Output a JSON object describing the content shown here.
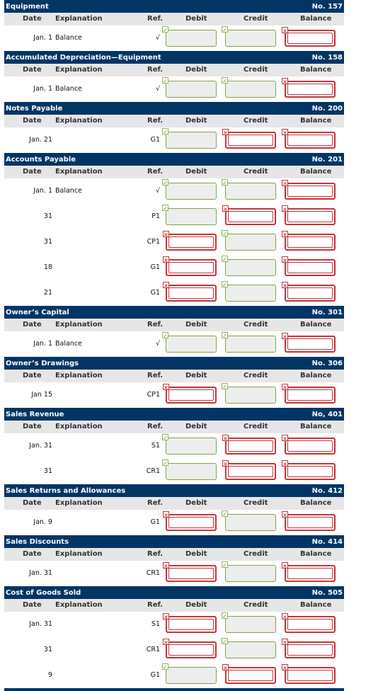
{
  "columns": {
    "date": "Date",
    "explanation": "Explanation",
    "ref": "Ref.",
    "debit": "Debit",
    "credit": "Credit",
    "balance": "Balance"
  },
  "accounts": [
    {
      "name": "Equipment",
      "no": "No. 157",
      "rows": [
        {
          "date": "Jan. 1",
          "explanation": "Balance",
          "ref": "√",
          "debit": "ok",
          "credit": "ok",
          "balance": "bad"
        }
      ]
    },
    {
      "name": "Accumulated Depreciation—Equipment",
      "no": "No. 158",
      "rows": [
        {
          "date": "Jan. 1",
          "explanation": "Balance",
          "ref": "√",
          "debit": "ok",
          "credit": "ok",
          "balance": "bad"
        }
      ]
    },
    {
      "name": "Notes Payable",
      "no": "No. 200",
      "rows": [
        {
          "date": "Jan. 21",
          "explanation": "",
          "ref": "G1",
          "debit": "ok",
          "credit": "bad",
          "balance": "bad"
        }
      ]
    },
    {
      "name": "Accounts Payable",
      "no": "No. 201",
      "rows": [
        {
          "date": "Jan. 1",
          "explanation": "Balance",
          "ref": "√",
          "debit": "ok",
          "credit": "ok",
          "balance": "bad"
        },
        {
          "date": "31",
          "explanation": "",
          "ref": "P1",
          "debit": "ok",
          "credit": "bad",
          "balance": "bad"
        },
        {
          "date": "31",
          "explanation": "",
          "ref": "CP1",
          "debit": "bad",
          "credit": "ok",
          "balance": "bad"
        },
        {
          "date": "18",
          "explanation": "",
          "ref": "G1",
          "debit": "bad",
          "credit": "ok",
          "balance": "bad"
        },
        {
          "date": "21",
          "explanation": "",
          "ref": "G1",
          "debit": "bad",
          "credit": "ok",
          "balance": "bad"
        }
      ]
    },
    {
      "name": "Owner’s Capital",
      "no": "No. 301",
      "rows": [
        {
          "date": "Jan. 1",
          "explanation": "Balance",
          "ref": "√",
          "debit": "ok",
          "credit": "ok",
          "balance": "bad"
        }
      ]
    },
    {
      "name": "Owner’s Drawings",
      "no": "No. 306",
      "rows": [
        {
          "date": "Jan 15",
          "explanation": "",
          "ref": "CP1",
          "debit": "bad",
          "credit": "ok",
          "balance": "bad"
        }
      ]
    },
    {
      "name": "Sales Revenue",
      "no": "No, 401",
      "rows": [
        {
          "date": "Jan. 31",
          "explanation": "",
          "ref": "S1",
          "debit": "ok",
          "credit": "bad",
          "balance": "bad"
        },
        {
          "date": "31",
          "explanation": "",
          "ref": "CR1",
          "debit": "ok",
          "credit": "bad",
          "balance": "bad"
        }
      ]
    },
    {
      "name": "Sales Returns and Allowances",
      "no": "No. 412",
      "rows": [
        {
          "date": "Jan. 9",
          "explanation": "",
          "ref": "G1",
          "debit": "bad",
          "credit": "ok",
          "balance": "bad"
        }
      ]
    },
    {
      "name": "Sales Discounts",
      "no": "No. 414",
      "rows": [
        {
          "date": "Jan. 31",
          "explanation": "",
          "ref": "CR1",
          "debit": "bad",
          "credit": "ok",
          "balance": "bad"
        }
      ]
    },
    {
      "name": "Cost of Goods Sold",
      "no": "No. 505",
      "rows": [
        {
          "date": "Jan. 31",
          "explanation": "",
          "ref": "S1",
          "debit": "bad",
          "credit": "ok",
          "balance": "bad"
        },
        {
          "date": "31",
          "explanation": "",
          "ref": "CR1",
          "debit": "bad",
          "credit": "ok",
          "balance": "bad"
        },
        {
          "date": "9",
          "explanation": "",
          "ref": "G1",
          "debit": "ok",
          "credit": "bad",
          "balance": "bad"
        }
      ]
    }
  ],
  "status_icons": {
    "ok": "check-mark-icon",
    "bad": "x-mark-icon"
  },
  "colors": {
    "header_bg": "#003565",
    "ok": "#7ea64a",
    "bad": "#c8343a"
  }
}
